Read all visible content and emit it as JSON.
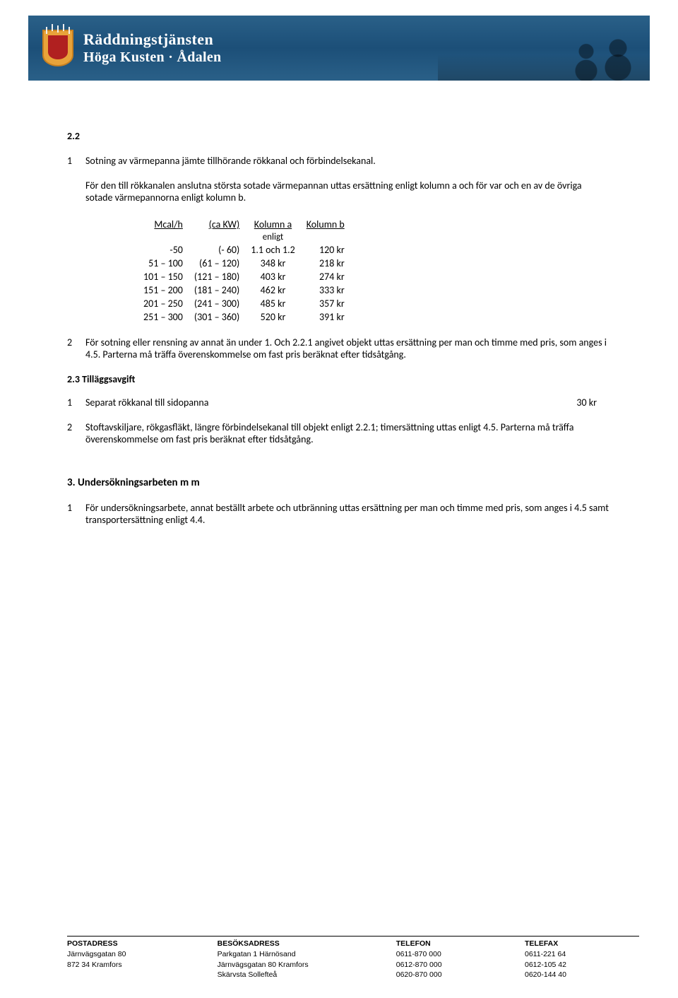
{
  "org": {
    "line1": "Räddningstjänsten",
    "line2": "Höga Kusten · Ådalen"
  },
  "section22": {
    "num": "2.2",
    "item1_num": "1",
    "item1_text": "Sotning av värmepanna jämte tillhörande rökkanal och förbindelsekanal.",
    "para2": "För den till rökkanalen anslutna största sotade värmepannan uttas ersättning enligt kolumn a och för var och en av de övriga sotade värmepannorna enligt kolumn b.",
    "table": {
      "headers": {
        "c1": "Mcal/h",
        "c2": "(ca KW)",
        "c3": "Kolumn a",
        "c3_sub": "enligt",
        "c4": "Kolumn b"
      },
      "rows": [
        {
          "c1": "-50",
          "c2": "(- 60)",
          "c3": "1.1 och 1.2",
          "c4": "120 kr"
        },
        {
          "c1": "51 – 100",
          "c2": "(61 – 120)",
          "c3": "348 kr",
          "c4": "218 kr"
        },
        {
          "c1": "101 – 150",
          "c2": "(121 – 180)",
          "c3": "403 kr",
          "c4": "274 kr"
        },
        {
          "c1": "151 – 200",
          "c2": "(181 – 240)",
          "c3": "462 kr",
          "c4": "333 kr"
        },
        {
          "c1": "201 – 250",
          "c2": "(241 – 300)",
          "c3": "485 kr",
          "c4": "357 kr"
        },
        {
          "c1": "251 – 300",
          "c2": "(301 – 360)",
          "c3": "520 kr",
          "c4": "391 kr"
        }
      ]
    },
    "item2_num": "2",
    "item2_text": "För sotning eller rensning av annat än under 1. Och 2.2.1 angivet objekt uttas ersättning per man och timme med pris, som anges i 4.5. Parterna må träffa överenskommelse om fast pris beräknat efter tidsåtgång."
  },
  "section23": {
    "heading": "2.3 Tilläggsavgift",
    "item1_num": "1",
    "item1_text": "Separat rökkanal till sidopanna",
    "item1_price": "30 kr",
    "item2_num": "2",
    "item2_text": "Stoftavskiljare, rökgasfläkt, längre förbindelsekanal till objekt enligt 2.2.1; timersättning uttas enligt 4.5. Parterna må träffa överenskommelse om fast pris beräknat efter tidsåtgång."
  },
  "section3": {
    "heading": "3. Undersökningsarbeten m m",
    "item1_num": "1",
    "item1_text": "För undersökningsarbete, annat beställt arbete och utbränning uttas ersättning per man och timme med pris, som anges i 4.5 samt transportersättning enligt 4.4."
  },
  "footer": {
    "cols": [
      {
        "label": "POSTADRESS",
        "lines": [
          "Järnvägsgatan 80",
          "872 34 Kramfors"
        ]
      },
      {
        "label": "BESÖKSADRESS",
        "lines": [
          "Parkgatan 1 Härnösand",
          "Järnvägsgatan 80 Kramfors",
          "Skärvsta   Sollefteå"
        ]
      },
      {
        "label": "TELEFON",
        "lines": [
          "0611-870 000",
          "0612-870 000",
          "0620-870 000"
        ]
      },
      {
        "label": "TELEFAX",
        "lines": [
          "0611-221 64",
          "0612-105 42",
          "0620-144 40"
        ]
      }
    ]
  }
}
